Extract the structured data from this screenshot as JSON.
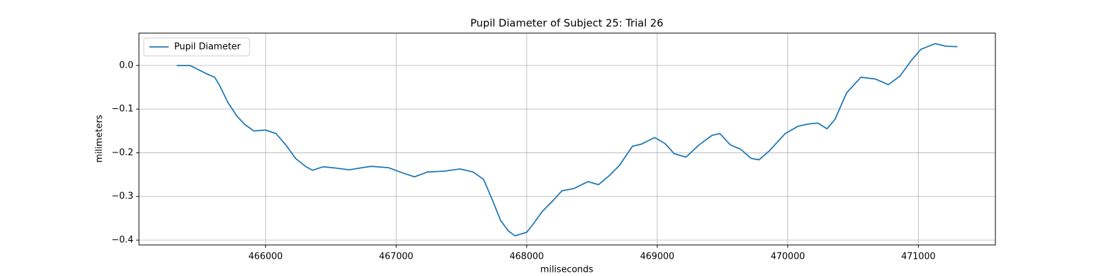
{
  "chart_data": {
    "type": "line",
    "title": "Pupil Diameter of Subject 25: Trial 26",
    "xlabel": "miliseconds",
    "ylabel": "milimeters",
    "x": [
      465320,
      465420,
      465540,
      465610,
      465650,
      465710,
      465780,
      465840,
      465910,
      466000,
      466080,
      466160,
      466230,
      466310,
      466360,
      466440,
      466540,
      466640,
      466740,
      466810,
      466940,
      467040,
      467140,
      467240,
      467370,
      467490,
      467590,
      467670,
      467740,
      467800,
      467860,
      467910,
      468000,
      468050,
      468120,
      468200,
      468270,
      468360,
      468470,
      468550,
      468630,
      468710,
      468810,
      468880,
      468980,
      469060,
      469130,
      469220,
      469320,
      469420,
      469480,
      469560,
      469640,
      469720,
      469780,
      469860,
      469980,
      470080,
      470160,
      470230,
      470300,
      470360,
      470450,
      470560,
      470670,
      470770,
      470860,
      470950,
      471020,
      471130,
      471210,
      471300
    ],
    "series": [
      {
        "name": "Pupil Diameter",
        "color": "#1f77b4",
        "values": [
          0.0,
          0.0,
          -0.018,
          -0.027,
          -0.047,
          -0.084,
          -0.116,
          -0.135,
          -0.15,
          -0.148,
          -0.156,
          -0.184,
          -0.213,
          -0.232,
          -0.24,
          -0.232,
          -0.235,
          -0.239,
          -0.234,
          -0.231,
          -0.234,
          -0.245,
          -0.255,
          -0.244,
          -0.242,
          -0.237,
          -0.244,
          -0.261,
          -0.31,
          -0.355,
          -0.379,
          -0.39,
          -0.382,
          -0.363,
          -0.334,
          -0.31,
          -0.287,
          -0.282,
          -0.266,
          -0.273,
          -0.253,
          -0.229,
          -0.185,
          -0.18,
          -0.165,
          -0.179,
          -0.202,
          -0.21,
          -0.182,
          -0.16,
          -0.156,
          -0.182,
          -0.192,
          -0.213,
          -0.216,
          -0.195,
          -0.156,
          -0.139,
          -0.134,
          -0.132,
          -0.145,
          -0.124,
          -0.063,
          -0.027,
          -0.031,
          -0.044,
          -0.024,
          0.013,
          0.037,
          0.05,
          0.044,
          0.043
        ]
      }
    ],
    "xlim": [
      465030,
      471590
    ],
    "ylim": [
      -0.411,
      0.074
    ],
    "xticks": [
      466000,
      467000,
      468000,
      469000,
      470000,
      471000
    ],
    "yticks": [
      {
        "value": -0.4,
        "label": "−0.4"
      },
      {
        "value": -0.3,
        "label": "−0.3"
      },
      {
        "value": -0.2,
        "label": "−0.2"
      },
      {
        "value": -0.1,
        "label": "−0.1"
      },
      {
        "value": 0,
        "label": "0.0"
      }
    ],
    "grid": true,
    "legend": "upper left"
  }
}
